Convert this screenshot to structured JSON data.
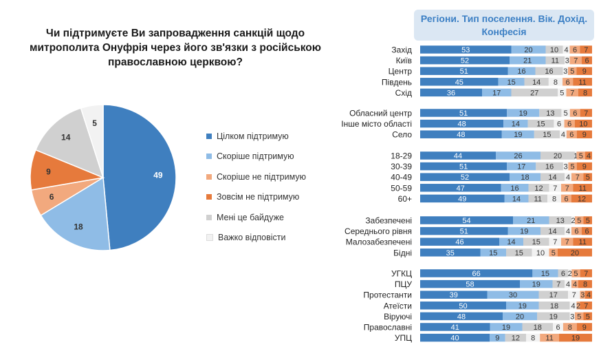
{
  "question": "Чи підтримуєте Ви запровадження санкцій щодо митрополита Онуфрія через його зв'язки з російською православною церквою?",
  "header_title": "Регіони. Тип поселення. Вік. Дохід. Конфесія",
  "colors": {
    "strong_support": "#3f7fbf",
    "support": "#8fbce6",
    "not_support": "#f2a97e",
    "strong_not_support": "#e67a3c",
    "indifferent": "#d0d0d0",
    "hard_to_say": "#f2f2f2"
  },
  "chart_data": [
    {
      "type": "pie",
      "title": "Чи підтримуєте Ви запровадження санкцій щодо митрополита Онуфрія через його зв'язки з російською православною церквою?",
      "categories": [
        "Цілком підтримую",
        "Скоріше підтримую",
        "Скоріше не підтримую",
        "Зовсім не підтримую",
        "Мені це байдуже",
        "Важко відповісти"
      ],
      "values": [
        49,
        18,
        6,
        9,
        14,
        5
      ],
      "legend": "right"
    },
    {
      "type": "bar",
      "orientation": "horizontal",
      "stacked": true,
      "title": "Регіони. Тип поселення. Вік. Дохід. Конфесія",
      "series_names": [
        "Цілком підтримую",
        "Скоріше підтримую",
        "Мені це байдуже",
        "Важко відповісти",
        "Скоріше не підтримую",
        "Зовсім не підтримую"
      ],
      "groups": [
        {
          "rows": [
            {
              "label": "Захід",
              "values": [
                53,
                20,
                10,
                4,
                6,
                7
              ]
            },
            {
              "label": "Київ",
              "values": [
                52,
                21,
                11,
                3,
                7,
                6
              ]
            },
            {
              "label": "Центр",
              "values": [
                51,
                16,
                16,
                3,
                5,
                9
              ]
            },
            {
              "label": "Південь",
              "values": [
                45,
                15,
                14,
                8,
                6,
                11
              ]
            },
            {
              "label": "Схід",
              "values": [
                36,
                17,
                27,
                5,
                7,
                8
              ]
            }
          ]
        },
        {
          "rows": [
            {
              "label": "Обласний центр",
              "values": [
                51,
                19,
                13,
                5,
                6,
                7
              ]
            },
            {
              "label": "Інше місто області",
              "values": [
                48,
                14,
                15,
                6,
                6,
                10
              ]
            },
            {
              "label": "Село",
              "values": [
                48,
                19,
                15,
                4,
                6,
                9
              ]
            }
          ]
        },
        {
          "rows": [
            {
              "label": "18-29",
              "values": [
                44,
                26,
                20,
                1,
                5,
                4
              ]
            },
            {
              "label": "30-39",
              "values": [
                51,
                17,
                16,
                3,
                5,
                9
              ]
            },
            {
              "label": "40-49",
              "values": [
                52,
                18,
                14,
                4,
                7,
                5
              ]
            },
            {
              "label": "50-59",
              "values": [
                47,
                16,
                12,
                7,
                7,
                11
              ]
            },
            {
              "label": "60+",
              "values": [
                49,
                14,
                11,
                8,
                6,
                12
              ]
            }
          ]
        },
        {
          "rows": [
            {
              "label": "Забезпечені",
              "values": [
                54,
                21,
                13,
                2,
                5,
                5
              ]
            },
            {
              "label": "Середнього рівня",
              "values": [
                51,
                19,
                14,
                4,
                6,
                6
              ]
            },
            {
              "label": "Малозабезпечені",
              "values": [
                46,
                14,
                15,
                7,
                7,
                11
              ]
            },
            {
              "label": "Бідні",
              "values": [
                35,
                15,
                15,
                10,
                5,
                20
              ]
            }
          ]
        },
        {
          "rows": [
            {
              "label": "УГКЦ",
              "values": [
                66,
                15,
                6,
                2,
                5,
                7
              ]
            },
            {
              "label": "ПЦУ",
              "values": [
                58,
                19,
                7,
                4,
                4,
                8
              ]
            },
            {
              "label": "Протестанти",
              "values": [
                39,
                30,
                17,
                7,
                3,
                4
              ]
            },
            {
              "label": "Атеїсти",
              "values": [
                50,
                19,
                18,
                4,
                2,
                7
              ]
            },
            {
              "label": "Віруючі",
              "values": [
                48,
                20,
                19,
                3,
                5,
                5
              ]
            },
            {
              "label": "Православні",
              "values": [
                41,
                19,
                18,
                6,
                8,
                9
              ]
            },
            {
              "label": "УПЦ",
              "values": [
                40,
                9,
                12,
                8,
                11,
                19
              ]
            }
          ]
        }
      ]
    }
  ]
}
